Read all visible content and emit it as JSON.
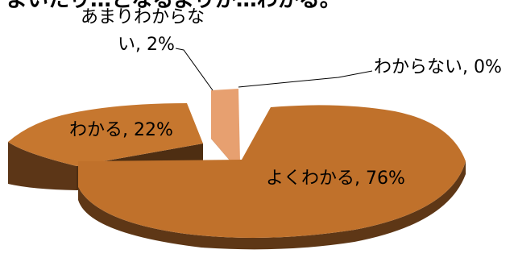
{
  "chart_data": {
    "type": "pie",
    "title_fragment": "よいたり…となるよりか…わかる。",
    "slices": [
      {
        "label": "よくわかる",
        "value": 76,
        "data_label": "よくわかる, 76%"
      },
      {
        "label": "わかる",
        "value": 22,
        "data_label": "わかる, 22%"
      },
      {
        "label": "あまりわからない",
        "value": 2,
        "data_label_line1": "あまりわからな",
        "data_label_line2": "い, 2%"
      },
      {
        "label": "わからない",
        "value": 0,
        "data_label": "わからない, 0%"
      }
    ],
    "colors": {
      "yokuwakaru_top": "#c0712b",
      "yokuwakaru_side": "#5e3716",
      "wakaru_top": "#c6772f",
      "wakaru_side": "#5c3617",
      "amari_top": "#e7a070",
      "amari_side": "#6b3b1b"
    },
    "style": "3d-exploded-pie"
  }
}
